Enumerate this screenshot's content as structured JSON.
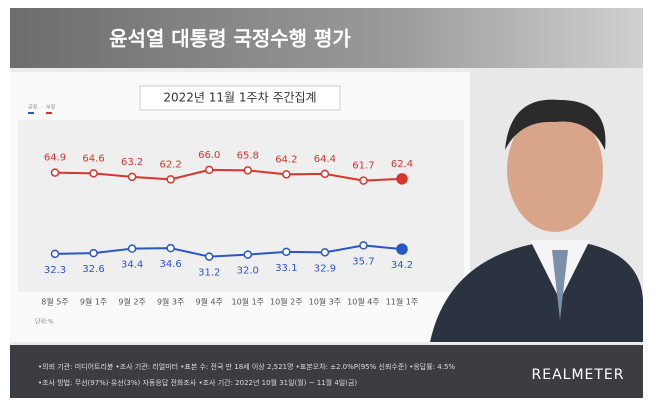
{
  "chart_data": {
    "type": "line",
    "title": "윤석열 대통령 국정수행 평가",
    "subtitle": "2022년 11월 1주차 주간집계",
    "categories": [
      "8월 5주",
      "9월 1주",
      "9월 2주",
      "9월 3주",
      "9월 4주",
      "10월 1주",
      "10월 2주",
      "10월 3주",
      "10월 4주",
      "11월 1주"
    ],
    "series": [
      {
        "name": "부정",
        "color": "#d7352b",
        "values": [
          64.9,
          64.6,
          63.2,
          62.2,
          66.0,
          65.8,
          64.2,
          64.4,
          61.7,
          62.4
        ],
        "value_labels": [
          "64.9",
          "64.6",
          "63.2",
          "62.2",
          "66.0",
          "65.8",
          "64.2",
          "64.4",
          "61.7",
          "62.4"
        ]
      },
      {
        "name": "긍정",
        "color": "#2a56c6",
        "values": [
          32.3,
          32.6,
          34.4,
          34.6,
          31.2,
          32.0,
          33.1,
          32.9,
          35.7,
          34.2
        ],
        "value_labels": [
          "32.3",
          "32.6",
          "34.4",
          "34.6",
          "31.2",
          "32.0",
          "33.1",
          "32.9",
          "35.7",
          "34.2"
        ]
      }
    ],
    "ylim": [
      17,
      86
    ],
    "unit_note": "단위:%",
    "notes": [
      "•의뢰 기관: 미디어트리뷴 •조사 기관: 리얼미터 •표본 수: 전국 만 18세 이상 2,521명 •표본오차: ±2.0%P(95% 신뢰수준) •응답률: 4.5%",
      "•조사 방법: 무선(97%)·유선(3%) 자동응답 전화조사 •조사 기간: 2022년 10월 31일(월) ~ 11월 4일(금)"
    ],
    "brand": "REALMETER"
  }
}
